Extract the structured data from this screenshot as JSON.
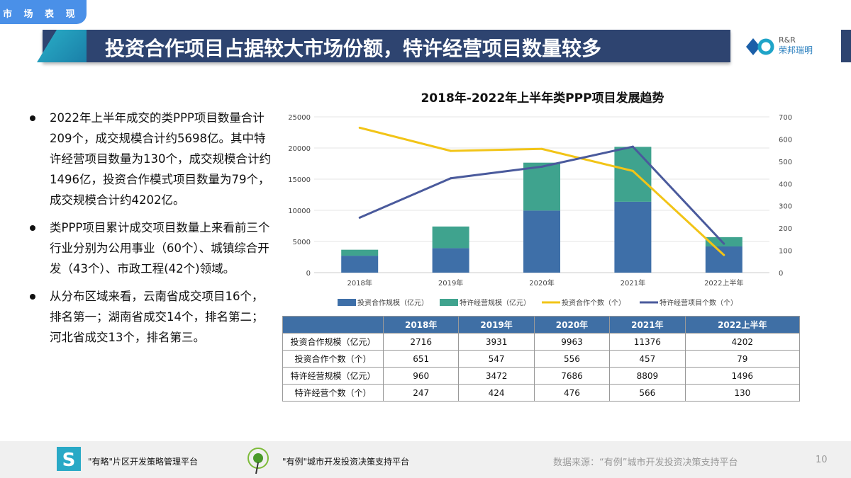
{
  "section_tab": "市 场 表 现",
  "title": "投资合作项目占据较大市场份额，特许经营项目数量较多",
  "logo": {
    "line1": "R&R",
    "line2": "荣邦瑞明"
  },
  "bullets": [
    "2022年上半年成交的类PPP项目数量合计209个，成交规模合计约5698亿。其中特许经营项目数量为130个，成交规模合计约1496亿，投资合作模式项目数量为79个，成交规模合计约4202亿。",
    "类PPP项目累计成交项目数量上来看前三个行业分别为公用事业（60个）、城镇综合开发（43个）、市政工程(42个)领域。",
    "从分布区域来看，云南省成交项目16个，排名第一；湖南省成交14个，排名第二；河北省成交13个，排名第三。"
  ],
  "chart_data": {
    "type": "bar+line",
    "title": "2018年-2022年上半年类PPP项目发展趋势",
    "categories": [
      "2018年",
      "2019年",
      "2020年",
      "2021年",
      "2022上半年"
    ],
    "y_left": {
      "range": [
        0,
        25000
      ],
      "ticks": [
        "0",
        "5000",
        "10000",
        "15000",
        "20000",
        "25000"
      ]
    },
    "y_right": {
      "range": [
        0,
        700
      ],
      "ticks": [
        "0",
        "100",
        "200",
        "300",
        "400",
        "500",
        "600",
        "700"
      ]
    },
    "grid": true,
    "legend": "bottom",
    "series": [
      {
        "name": "投资合作规模（亿元）",
        "kind": "stacked-bar",
        "axis": "left",
        "color": "#3e6fa8",
        "values": [
          2716,
          3931,
          9963,
          11376,
          4202
        ]
      },
      {
        "name": "特许经营规模（亿元）",
        "kind": "stacked-bar",
        "axis": "left",
        "color": "#3fa38e",
        "values": [
          960,
          3472,
          7686,
          8809,
          1496
        ]
      },
      {
        "name": "投资合作个数（个）",
        "kind": "line",
        "axis": "right",
        "color": "#f2c417",
        "values": [
          651,
          547,
          556,
          457,
          79
        ]
      },
      {
        "name": "特许经营项目个数（个）",
        "kind": "line",
        "axis": "right",
        "color": "#4a5a9c",
        "values": [
          247,
          424,
          476,
          566,
          130
        ]
      }
    ]
  },
  "table": {
    "headers": [
      "",
      "2018年",
      "2019年",
      "2020年",
      "2021年",
      "2022上半年"
    ],
    "rows": [
      [
        "投资合作规模（亿元）",
        "2716",
        "3931",
        "9963",
        "11376",
        "4202"
      ],
      [
        "投资合作个数（个）",
        "651",
        "547",
        "556",
        "457",
        "79"
      ],
      [
        "特许经营规模（亿元）",
        "960",
        "3472",
        "7686",
        "8809",
        "1496"
      ],
      [
        "特许经营个数（个）",
        "247",
        "424",
        "476",
        "566",
        "130"
      ]
    ]
  },
  "footer": {
    "platform1": "\"有略\"片区开发策略管理平台",
    "platform2": "\"有例\"城市开发投资决策支持平台",
    "source": "数据来源：“有例”城市开发投资决策支持平台",
    "page": "10"
  }
}
